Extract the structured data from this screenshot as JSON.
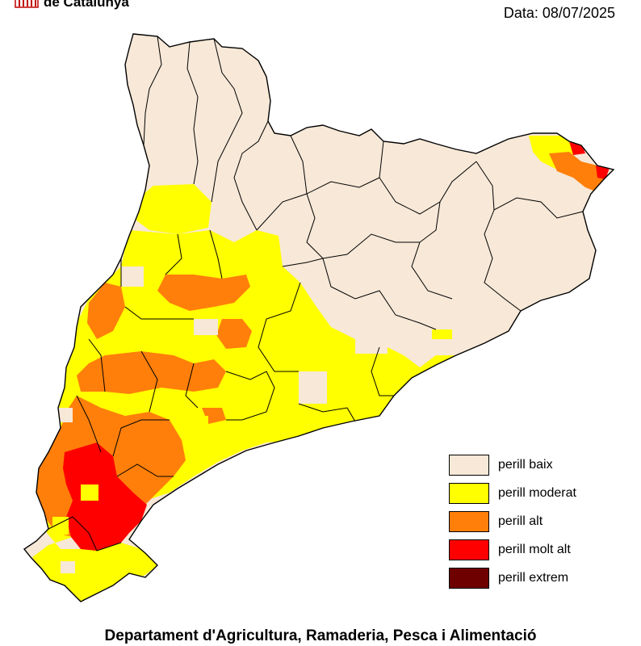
{
  "header": {
    "brand": "de Catalunya",
    "date": "Data: 08/07/2025"
  },
  "legend": {
    "items": [
      {
        "label": "perill baix",
        "color": "#f7e8d7"
      },
      {
        "label": "perill moderat",
        "color": "#ffff00"
      },
      {
        "label": "perill alt",
        "color": "#ff7f0a"
      },
      {
        "label": "perill molt alt",
        "color": "#ff0000"
      },
      {
        "label": "perill extrem",
        "color": "#6e0000"
      }
    ]
  },
  "footer": {
    "text": "Departament d'Agricultura, Ramaderia, Pesca i Alimentació"
  },
  "map": {
    "region": "Catalunya",
    "colors": {
      "outline": "#000000",
      "background": "#ffffff",
      "logo_red": "#c00000"
    }
  }
}
